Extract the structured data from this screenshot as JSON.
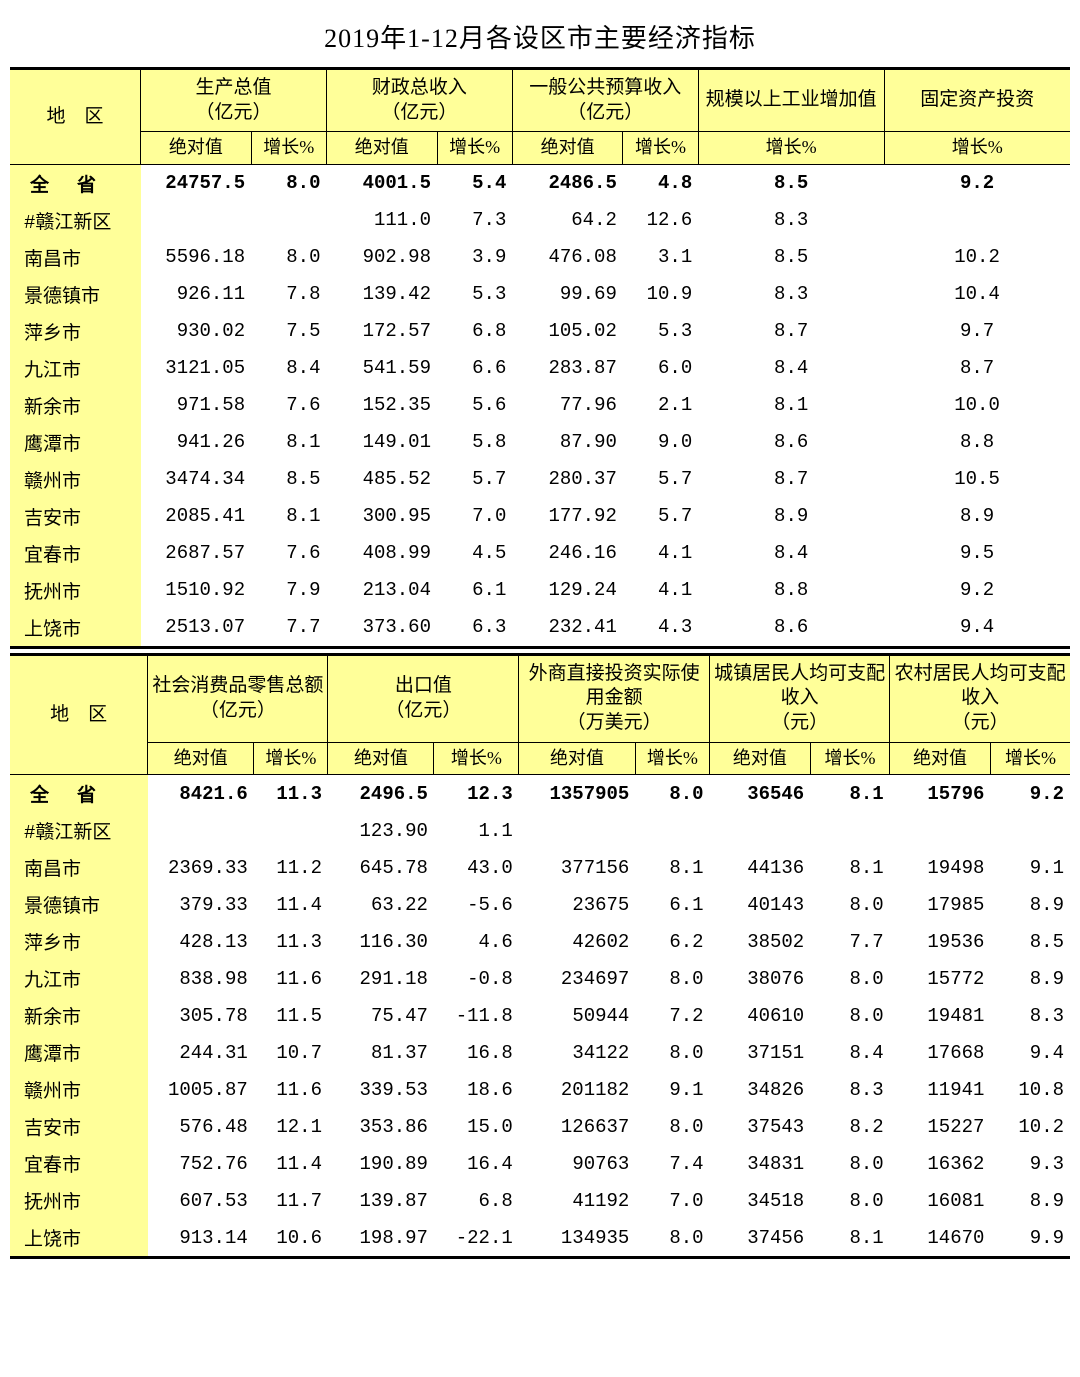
{
  "title": "2019年1-12月各设区市主要经济指标",
  "colors": {
    "header_bg": "#ffff99",
    "border": "#000000",
    "bg": "#ffffff"
  },
  "table1": {
    "region_label": "地　区",
    "groups": [
      {
        "label": "生产总值\n（亿元）",
        "subs": [
          "绝对值",
          "增长%"
        ]
      },
      {
        "label": "财政总收入\n（亿元）",
        "subs": [
          "绝对值",
          "增长%"
        ]
      },
      {
        "label": "一般公共预算收入\n（亿元）",
        "subs": [
          "绝对值",
          "增长%"
        ]
      },
      {
        "label": "规模以上工业增加值",
        "subs": [
          "增长%"
        ]
      },
      {
        "label": "固定资产投资",
        "subs": [
          "增长%"
        ]
      }
    ],
    "rows": [
      {
        "region": "全省",
        "province": true,
        "v": [
          "24757.5",
          "8.0",
          "4001.5",
          "5.4",
          "2486.5",
          "4.8",
          "8.5",
          "9.2"
        ]
      },
      {
        "region": "#赣江新区",
        "v": [
          "",
          "",
          "111.0",
          "7.3",
          "64.2",
          "12.6",
          "8.3",
          ""
        ]
      },
      {
        "region": "南昌市",
        "v": [
          "5596.18",
          "8.0",
          "902.98",
          "3.9",
          "476.08",
          "3.1",
          "8.5",
          "10.2"
        ]
      },
      {
        "region": "景德镇市",
        "v": [
          "926.11",
          "7.8",
          "139.42",
          "5.3",
          "99.69",
          "10.9",
          "8.3",
          "10.4"
        ]
      },
      {
        "region": "萍乡市",
        "v": [
          "930.02",
          "7.5",
          "172.57",
          "6.8",
          "105.02",
          "5.3",
          "8.7",
          "9.7"
        ]
      },
      {
        "region": "九江市",
        "v": [
          "3121.05",
          "8.4",
          "541.59",
          "6.6",
          "283.87",
          "6.0",
          "8.4",
          "8.7"
        ]
      },
      {
        "region": "新余市",
        "v": [
          "971.58",
          "7.6",
          "152.35",
          "5.6",
          "77.96",
          "2.1",
          "8.1",
          "10.0"
        ]
      },
      {
        "region": "鹰潭市",
        "v": [
          "941.26",
          "8.1",
          "149.01",
          "5.8",
          "87.90",
          "9.0",
          "8.6",
          "8.8"
        ]
      },
      {
        "region": "赣州市",
        "v": [
          "3474.34",
          "8.5",
          "485.52",
          "5.7",
          "280.37",
          "5.7",
          "8.7",
          "10.5"
        ]
      },
      {
        "region": "吉安市",
        "v": [
          "2085.41",
          "8.1",
          "300.95",
          "7.0",
          "177.92",
          "5.7",
          "8.9",
          "8.9"
        ]
      },
      {
        "region": "宜春市",
        "v": [
          "2687.57",
          "7.6",
          "408.99",
          "4.5",
          "246.16",
          "4.1",
          "8.4",
          "9.5"
        ]
      },
      {
        "region": "抚州市",
        "v": [
          "1510.92",
          "7.9",
          "213.04",
          "6.1",
          "129.24",
          "4.1",
          "8.8",
          "9.2"
        ]
      },
      {
        "region": "上饶市",
        "v": [
          "2513.07",
          "7.7",
          "373.60",
          "6.3",
          "232.41",
          "4.3",
          "8.6",
          "9.4"
        ]
      }
    ]
  },
  "table2": {
    "region_label": "地　区",
    "groups": [
      {
        "label": "社会消费品零售总额\n（亿元）",
        "subs": [
          "绝对值",
          "增长%"
        ]
      },
      {
        "label": "出口值\n（亿元）",
        "subs": [
          "绝对值",
          "增长%"
        ]
      },
      {
        "label": "外商直接投资实际使用金额\n（万美元）",
        "subs": [
          "绝对值",
          "增长%"
        ]
      },
      {
        "label": "城镇居民人均可支配收入\n（元）",
        "subs": [
          "绝对值",
          "增长%"
        ]
      },
      {
        "label": "农村居民人均可支配收入\n（元）",
        "subs": [
          "绝对值",
          "增长%"
        ]
      }
    ],
    "rows": [
      {
        "region": "全省",
        "province": true,
        "v": [
          "8421.6",
          "11.3",
          "2496.5",
          "12.3",
          "1357905",
          "8.0",
          "36546",
          "8.1",
          "15796",
          "9.2"
        ]
      },
      {
        "region": "#赣江新区",
        "v": [
          "",
          "",
          "123.90",
          "1.1",
          "",
          "",
          "",
          "",
          "",
          ""
        ]
      },
      {
        "region": "南昌市",
        "v": [
          "2369.33",
          "11.2",
          "645.78",
          "43.0",
          "377156",
          "8.1",
          "44136",
          "8.1",
          "19498",
          "9.1"
        ]
      },
      {
        "region": "景德镇市",
        "v": [
          "379.33",
          "11.4",
          "63.22",
          "-5.6",
          "23675",
          "6.1",
          "40143",
          "8.0",
          "17985",
          "8.9"
        ]
      },
      {
        "region": "萍乡市",
        "v": [
          "428.13",
          "11.3",
          "116.30",
          "4.6",
          "42602",
          "6.2",
          "38502",
          "7.7",
          "19536",
          "8.5"
        ]
      },
      {
        "region": "九江市",
        "v": [
          "838.98",
          "11.6",
          "291.18",
          "-0.8",
          "234697",
          "8.0",
          "38076",
          "8.0",
          "15772",
          "8.9"
        ]
      },
      {
        "region": "新余市",
        "v": [
          "305.78",
          "11.5",
          "75.47",
          "-11.8",
          "50944",
          "7.2",
          "40610",
          "8.0",
          "19481",
          "8.3"
        ]
      },
      {
        "region": "鹰潭市",
        "v": [
          "244.31",
          "10.7",
          "81.37",
          "16.8",
          "34122",
          "8.0",
          "37151",
          "8.4",
          "17668",
          "9.4"
        ]
      },
      {
        "region": "赣州市",
        "v": [
          "1005.87",
          "11.6",
          "339.53",
          "18.6",
          "201182",
          "9.1",
          "34826",
          "8.3",
          "11941",
          "10.8"
        ]
      },
      {
        "region": "吉安市",
        "v": [
          "576.48",
          "12.1",
          "353.86",
          "15.0",
          "126637",
          "8.0",
          "37543",
          "8.2",
          "15227",
          "10.2"
        ]
      },
      {
        "region": "宜春市",
        "v": [
          "752.76",
          "11.4",
          "190.89",
          "16.4",
          "90763",
          "7.4",
          "34831",
          "8.0",
          "16362",
          "9.3"
        ]
      },
      {
        "region": "抚州市",
        "v": [
          "607.53",
          "11.7",
          "139.87",
          "6.8",
          "41192",
          "7.0",
          "34518",
          "8.0",
          "16081",
          "8.9"
        ]
      },
      {
        "region": "上饶市",
        "v": [
          "913.14",
          "10.6",
          "198.97",
          "-22.1",
          "134935",
          "8.0",
          "37456",
          "8.1",
          "14670",
          "9.9"
        ]
      }
    ]
  }
}
